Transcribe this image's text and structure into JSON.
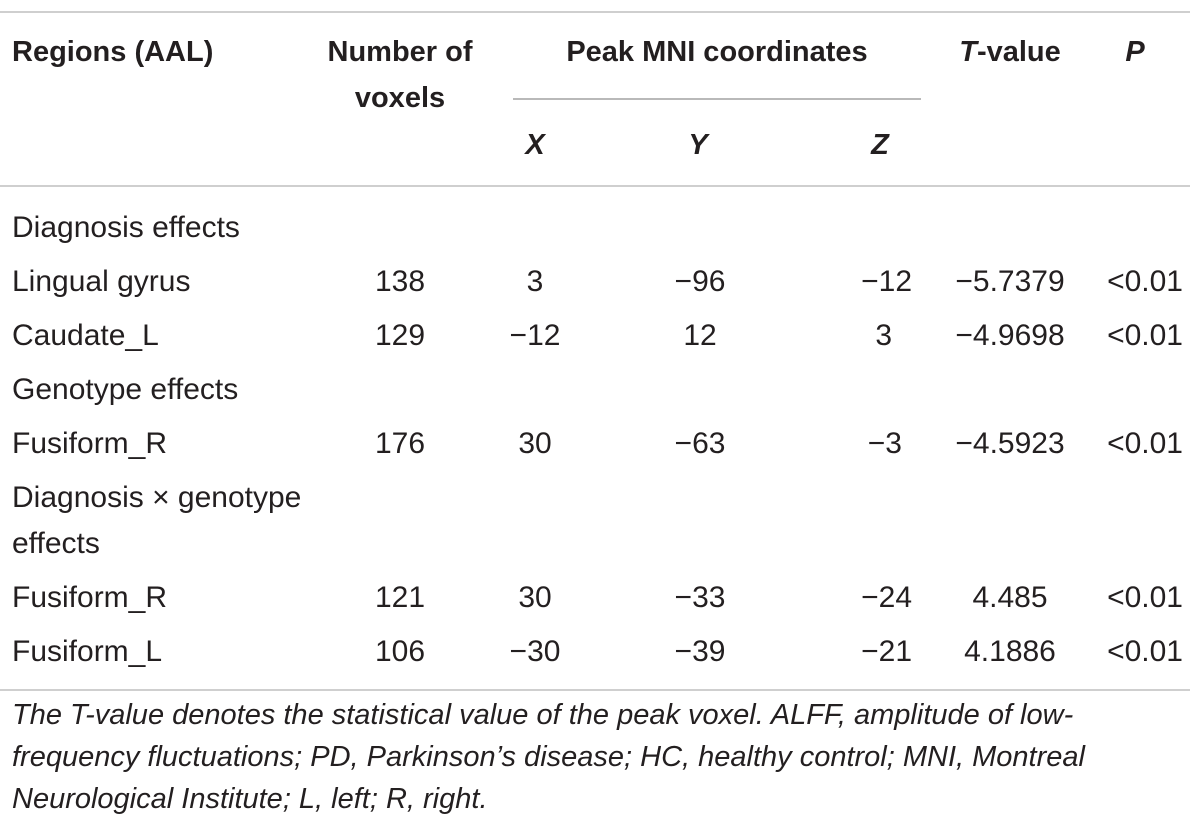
{
  "table": {
    "headers": {
      "region": "Regions (AAL)",
      "voxels_line1": "Number of",
      "voxels_line2": "voxels",
      "mni": "Peak MNI coordinates",
      "x": "X",
      "y": "Y",
      "z": "Z",
      "t_italic": "T",
      "t_rest": "-value",
      "p": "P"
    },
    "sections": [
      {
        "title": "Diagnosis effects",
        "rows": [
          {
            "region": "Lingual gyrus",
            "voxels": "138",
            "x": "3",
            "y": "−96",
            "z": "−12",
            "t": "−5.7379",
            "p": "<0.01"
          },
          {
            "region": "Caudate_L",
            "voxels": "129",
            "x": "−12",
            "y": "12",
            "z": "3",
            "t": "−4.9698",
            "p": "<0.01"
          }
        ]
      },
      {
        "title": "Genotype effects",
        "rows": [
          {
            "region": "Fusiform_R",
            "voxels": "176",
            "x": "30",
            "y": "−63",
            "z": "−3",
            "t": "−4.5923",
            "p": "<0.01"
          }
        ]
      },
      {
        "title_line1": "Diagnosis × genotype",
        "title_line2": "effects",
        "rows": [
          {
            "region": "Fusiform_R",
            "voxels": "121",
            "x": "30",
            "y": "−33",
            "z": "−24",
            "t": "4.485",
            "p": "<0.01"
          },
          {
            "region": "Fusiform_L",
            "voxels": "106",
            "x": "−30",
            "y": "−39",
            "z": "−21",
            "t": "4.1886",
            "p": "<0.01"
          }
        ]
      }
    ],
    "footnote": "The T-value denotes the statistical value of the peak voxel. ALFF, amplitude of low-frequency fluctuations; PD, Parkinson’s disease; HC, healthy control; MNI, Montreal Neurological Institute; L, left; R, right."
  }
}
